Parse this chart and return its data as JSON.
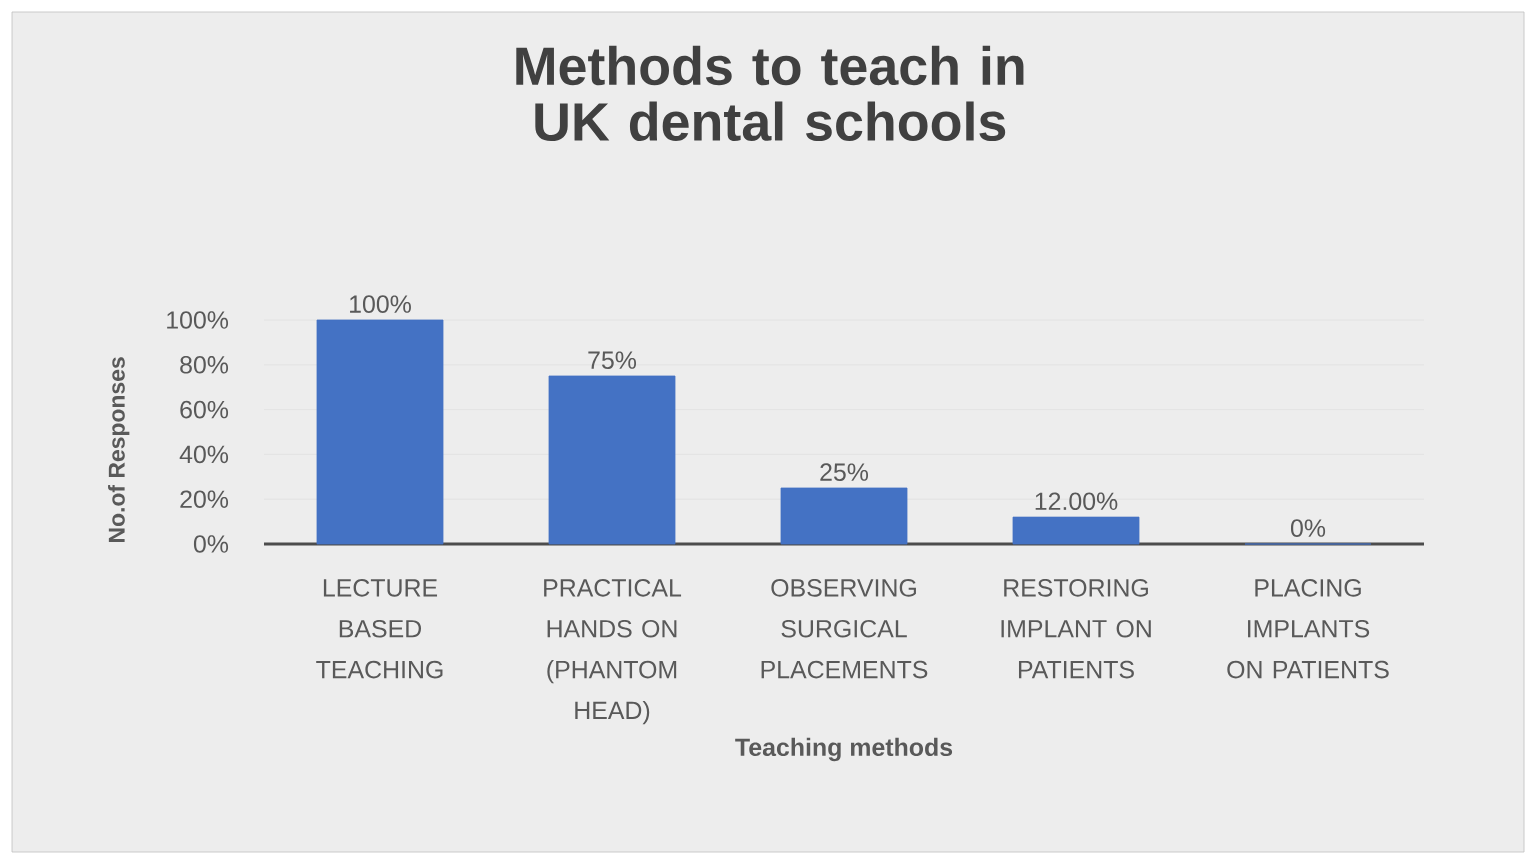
{
  "chart_data": {
    "type": "bar",
    "title": "Methods to teach in UK dental schools",
    "xlabel": "Teaching methods",
    "ylabel": "No.of Responses",
    "categories": [
      "LECTURE BASED TEACHING",
      "PRACTICAL HANDS ON (PHANTOM HEAD)",
      "OBSERVING SURGICAL PLACEMENTS",
      "RESTORING IMPLANT ON PATIENTS",
      "PLACING IMPLANTS ON PATIENTS"
    ],
    "values": [
      100,
      75,
      25,
      12,
      0
    ],
    "value_labels": [
      "100%",
      "75%",
      "25%",
      "12.00%",
      "0%"
    ],
    "color": "#4472c4",
    "ylim": [
      0,
      100
    ],
    "yticks": [
      {
        "value": 0,
        "label": "0%"
      },
      {
        "value": 20,
        "label": "20%"
      },
      {
        "value": 40,
        "label": "40%"
      },
      {
        "value": 60,
        "label": "60%"
      },
      {
        "value": 80,
        "label": "80%"
      },
      {
        "value": 100,
        "label": "100%"
      }
    ],
    "grid": "y"
  }
}
